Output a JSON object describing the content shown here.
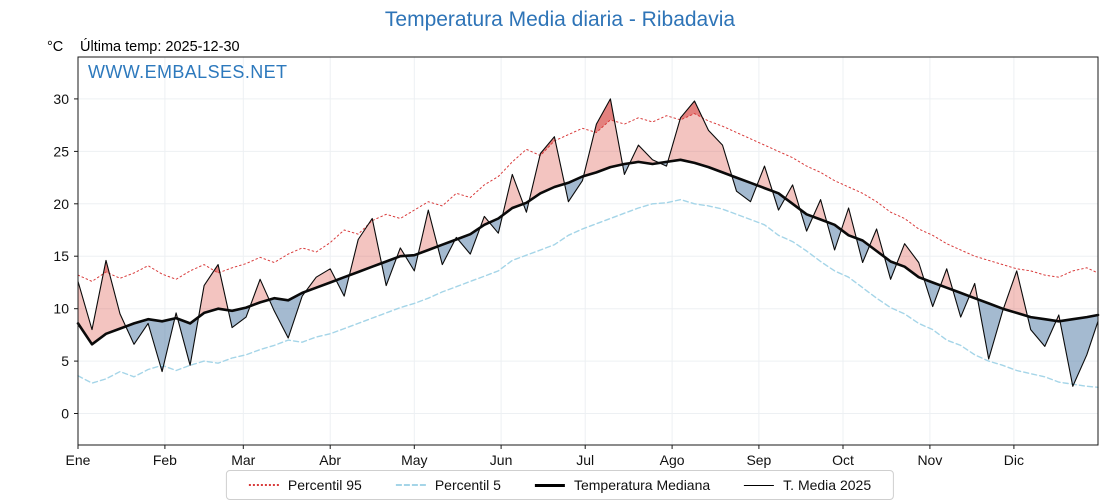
{
  "chart_data": {
    "type": "line",
    "title": "Temperatura Media diaria - Ribadavia",
    "ylabel": "°C",
    "xlabel": "",
    "annotation_last_temp": "Última temp: 2025-12-30",
    "watermark": "WWW.EMBALSES.NET",
    "months": [
      "Ene",
      "Feb",
      "Mar",
      "Abr",
      "May",
      "Jun",
      "Jul",
      "Ago",
      "Sep",
      "Oct",
      "Nov",
      "Dic"
    ],
    "month_start_day": [
      0,
      31,
      59,
      90,
      120,
      151,
      181,
      212,
      243,
      273,
      304,
      334
    ],
    "yticks": [
      0,
      5,
      10,
      15,
      20,
      25,
      30
    ],
    "ylim": [
      -3,
      34
    ],
    "days_total": 365,
    "x_step_days": 5,
    "grid": true,
    "legend_position": "bottom",
    "colors": {
      "title_blue": "#2e74b7",
      "watermark_blue": "#2d79bd",
      "p95_red": "#d93b3b",
      "p5_blue": "#a5d5e8",
      "median_black": "#0a0a0a",
      "fill_above_median": "rgba(217,70,60,0.32)",
      "fill_below_median": "rgba(90,130,170,0.55)",
      "fill_above_p95": "rgba(205,35,35,0.42)",
      "fill_below_p5": "rgba(35,80,140,0.5)"
    },
    "series": [
      {
        "name": "Percentil 95",
        "style": "dotted",
        "values": [
          13.2,
          12.6,
          13.5,
          12.9,
          13.4,
          14.1,
          13.3,
          12.8,
          13.6,
          14.2,
          13.4,
          13.9,
          14.3,
          14.9,
          14.4,
          15.2,
          15.8,
          15.4,
          16.3,
          17.5,
          17.1,
          18.4,
          19.0,
          18.6,
          19.4,
          20.2,
          19.8,
          21.0,
          20.6,
          21.8,
          22.6,
          24.0,
          25.2,
          24.6,
          26.0,
          26.6,
          27.2,
          26.8,
          28.0,
          27.6,
          28.2,
          27.8,
          28.4,
          28.0,
          28.6,
          27.9,
          27.4,
          26.8,
          26.2,
          25.6,
          25.0,
          24.4,
          23.6,
          23.0,
          22.2,
          21.6,
          21.0,
          20.2,
          19.2,
          18.6,
          17.6,
          17.0,
          16.2,
          15.6,
          15.0,
          14.6,
          14.2,
          13.8,
          13.6,
          13.2,
          13.0,
          13.6,
          13.9,
          13.4
        ]
      },
      {
        "name": "Percentil 5",
        "style": "dashed",
        "values": [
          3.6,
          2.9,
          3.3,
          4.0,
          3.5,
          4.2,
          4.6,
          4.1,
          4.6,
          5.0,
          4.8,
          5.3,
          5.6,
          6.1,
          6.5,
          7.0,
          6.8,
          7.3,
          7.6,
          8.1,
          8.6,
          9.1,
          9.6,
          10.1,
          10.5,
          11.0,
          11.6,
          12.1,
          12.6,
          13.1,
          13.6,
          14.6,
          15.1,
          15.6,
          16.1,
          17.0,
          17.6,
          18.1,
          18.6,
          19.1,
          19.6,
          20.0,
          20.1,
          20.4,
          20.0,
          19.8,
          19.5,
          19.0,
          18.5,
          18.0,
          17.0,
          16.4,
          15.5,
          14.5,
          13.6,
          13.0,
          12.0,
          11.0,
          10.1,
          9.5,
          8.6,
          8.0,
          7.0,
          6.5,
          5.6,
          5.0,
          4.6,
          4.1,
          3.8,
          3.5,
          3.0,
          2.8,
          2.6,
          2.5
        ]
      },
      {
        "name": "Temperatura Mediana",
        "style": "solid-thick",
        "values": [
          8.6,
          6.6,
          7.6,
          8.1,
          8.6,
          9.0,
          8.8,
          9.1,
          8.6,
          9.6,
          10.0,
          9.8,
          10.1,
          10.6,
          11.0,
          10.8,
          11.5,
          12.0,
          12.5,
          13.0,
          13.5,
          14.0,
          14.5,
          15.0,
          15.1,
          15.6,
          16.1,
          16.6,
          17.1,
          18.0,
          18.6,
          19.6,
          20.1,
          21.0,
          21.6,
          22.0,
          22.6,
          23.0,
          23.5,
          23.8,
          24.0,
          23.8,
          24.0,
          24.2,
          23.9,
          23.5,
          23.0,
          22.5,
          22.0,
          21.5,
          21.0,
          20.0,
          19.0,
          18.5,
          18.0,
          17.0,
          16.5,
          15.5,
          14.5,
          14.0,
          13.0,
          12.5,
          12.0,
          11.5,
          11.0,
          10.5,
          10.0,
          9.6,
          9.2,
          9.0,
          8.8,
          9.0,
          9.2,
          9.4
        ]
      },
      {
        "name": "T. Media 2025",
        "style": "solid-thin",
        "values": [
          12.6,
          8.0,
          14.6,
          9.5,
          6.6,
          8.6,
          4.0,
          9.6,
          4.6,
          12.2,
          14.2,
          8.2,
          9.2,
          12.8,
          9.8,
          7.2,
          11.2,
          13.0,
          13.8,
          11.2,
          16.6,
          18.6,
          12.2,
          15.8,
          13.6,
          19.4,
          14.2,
          16.8,
          15.2,
          18.8,
          17.2,
          22.8,
          19.2,
          24.8,
          26.4,
          20.2,
          22.2,
          27.6,
          30.0,
          22.8,
          25.6,
          24.2,
          23.6,
          28.2,
          29.8,
          27.0,
          25.6,
          21.2,
          20.2,
          23.6,
          19.4,
          21.8,
          17.4,
          20.4,
          15.6,
          19.6,
          14.4,
          17.6,
          12.8,
          16.2,
          14.4,
          10.2,
          13.8,
          9.2,
          12.4,
          5.2,
          9.8,
          13.6,
          8.0,
          6.4,
          9.4,
          2.6,
          5.6,
          8.8
        ]
      }
    ]
  }
}
